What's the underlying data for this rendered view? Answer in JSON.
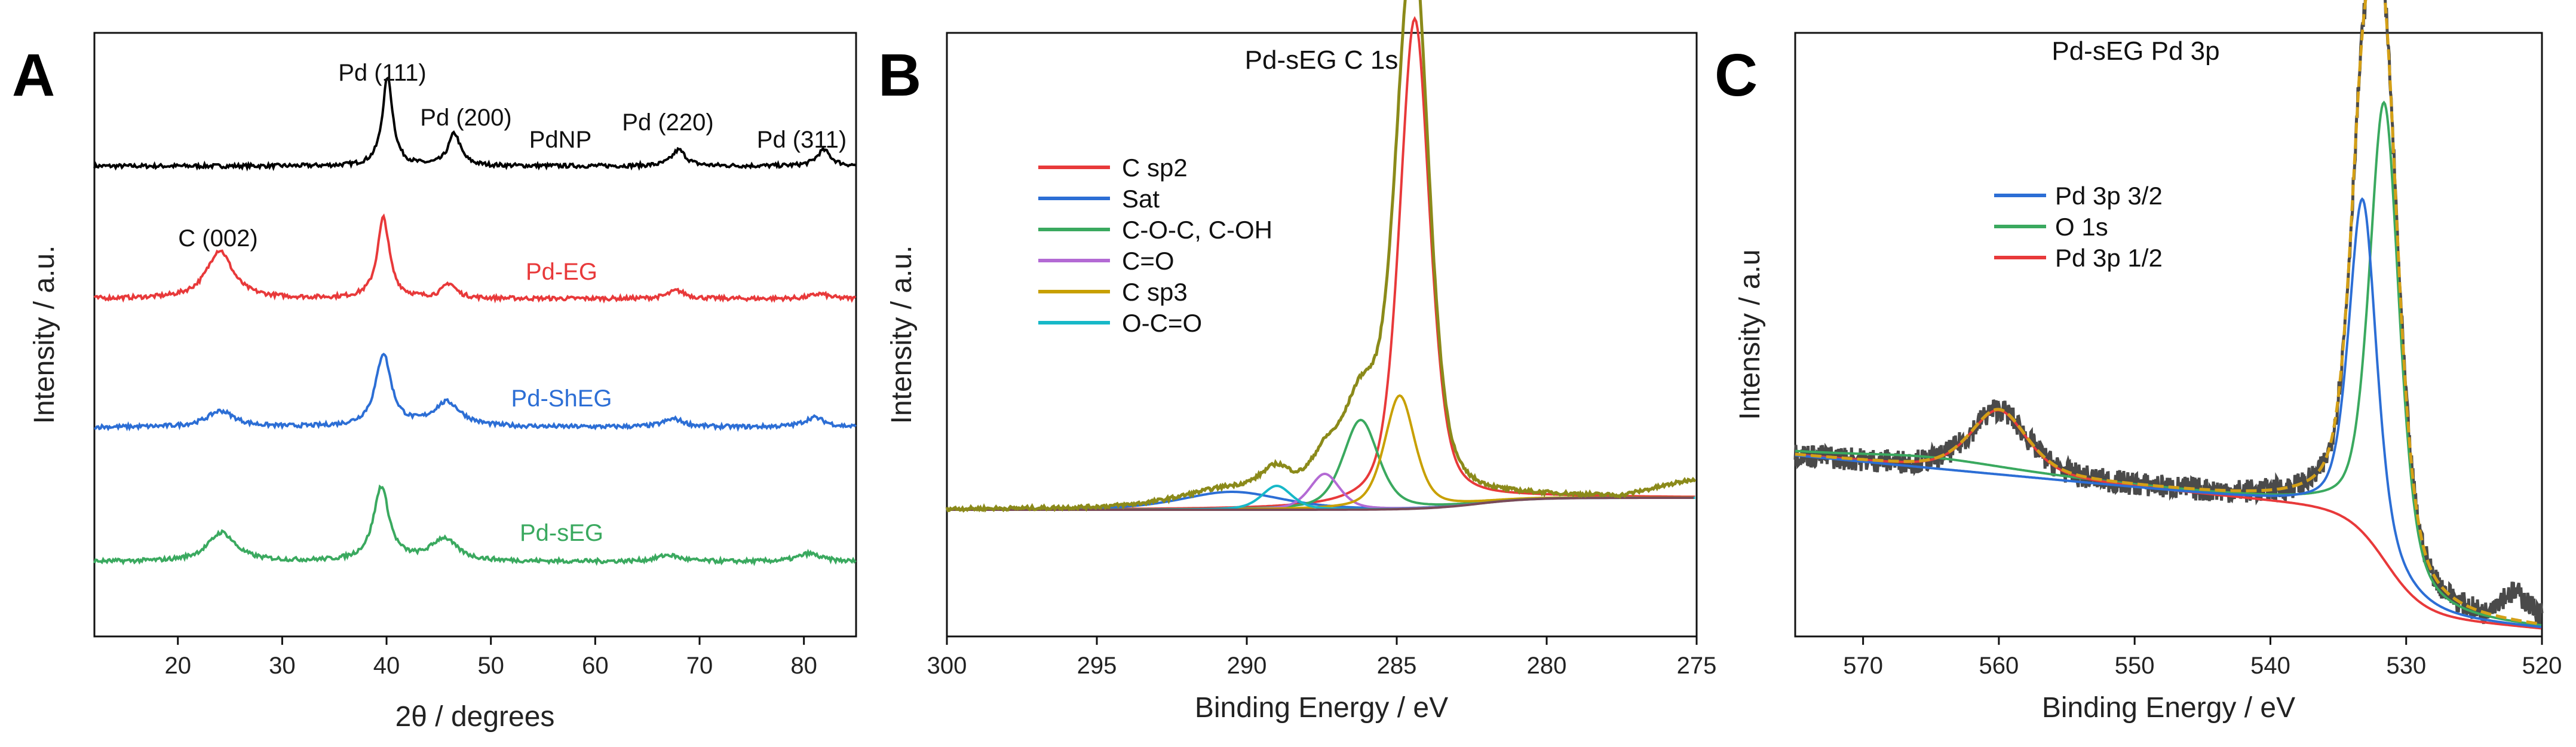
{
  "panels": [
    {
      "label": "A"
    },
    {
      "label": "B"
    },
    {
      "label": "C"
    }
  ],
  "chart_data": [
    {
      "type": "line",
      "panel": "A",
      "title": "",
      "xlabel": "2θ / degrees",
      "ylabel": "Intensity / a.u.",
      "xlim": [
        12,
        85
      ],
      "xticks": [
        20,
        30,
        40,
        50,
        60,
        70,
        80
      ],
      "series": [
        {
          "name": "PdNP",
          "color": "#000000",
          "offset": 3.0,
          "peaks": [
            {
              "x": 40.1,
              "h": 0.55,
              "w": 0.6
            },
            {
              "x": 46.5,
              "h": 0.2,
              "w": 0.7
            },
            {
              "x": 68.0,
              "h": 0.1,
              "w": 0.8
            },
            {
              "x": 81.9,
              "h": 0.1,
              "w": 0.8
            }
          ]
        },
        {
          "name": "Pd-EG",
          "color": "#e8393a",
          "offset": 1.9,
          "peaks": [
            {
              "x": 24.0,
              "h": 0.3,
              "w": 1.5
            },
            {
              "x": 39.7,
              "h": 0.5,
              "w": 0.7
            },
            {
              "x": 46.0,
              "h": 0.09,
              "w": 0.8
            },
            {
              "x": 67.8,
              "h": 0.05,
              "w": 1.0
            },
            {
              "x": 81.5,
              "h": 0.03,
              "w": 1.0
            }
          ]
        },
        {
          "name": "Pd-ShEG",
          "color": "#2c6ed5",
          "offset": 0.9,
          "peaks": [
            {
              "x": 24.1,
              "h": 0.1,
              "w": 1.6
            },
            {
              "x": 39.7,
              "h": 0.45,
              "w": 0.9
            },
            {
              "x": 45.8,
              "h": 0.15,
              "w": 1.6
            },
            {
              "x": 67.5,
              "h": 0.05,
              "w": 1.2
            },
            {
              "x": 81.0,
              "h": 0.06,
              "w": 1.2
            }
          ]
        },
        {
          "name": "Pd-sEG",
          "color": "#3aa95f",
          "offset": 0.0,
          "peaks": [
            {
              "x": 24.2,
              "h": 0.18,
              "w": 1.6
            },
            {
              "x": 39.5,
              "h": 0.46,
              "w": 0.9
            },
            {
              "x": 45.5,
              "h": 0.14,
              "w": 1.5
            },
            {
              "x": 67.0,
              "h": 0.04,
              "w": 1.3
            },
            {
              "x": 80.5,
              "h": 0.05,
              "w": 1.3
            }
          ]
        }
      ],
      "annotations": [
        {
          "text": "Pd (111)"
        },
        {
          "text": "Pd (200)"
        },
        {
          "text": "PdNP"
        },
        {
          "text": "Pd (220)"
        },
        {
          "text": "Pd (311)"
        },
        {
          "text": "C (002)"
        },
        {
          "text": "Pd-EG"
        },
        {
          "text": "Pd-ShEG"
        },
        {
          "text": "Pd-sEG"
        }
      ]
    },
    {
      "type": "line",
      "panel": "B",
      "title": "Pd-sEG C 1s",
      "xlabel": "Binding Energy / eV",
      "ylabel": "Intensity / a.u.",
      "xlim": [
        300,
        275
      ],
      "xticks": [
        300,
        295,
        290,
        285,
        280,
        275
      ],
      "series": [
        {
          "name": "C sp2",
          "color": "#e8393a",
          "center": 284.4,
          "height": 0.82,
          "width": 0.6
        },
        {
          "name": "Sat",
          "color": "#2c6ed5",
          "center": 290.5,
          "height": 0.03,
          "width": 2.0
        },
        {
          "name": "C-O-C, C-OH",
          "color": "#3aa95f",
          "center": 286.2,
          "height": 0.15,
          "width": 0.7
        },
        {
          "name": "C=O",
          "color": "#b36ad4",
          "center": 287.4,
          "height": 0.06,
          "width": 0.6
        },
        {
          "name": "C sp3",
          "color": "#c8a000",
          "center": 284.9,
          "height": 0.19,
          "width": 0.6
        },
        {
          "name": "O-C=O",
          "color": "#17b8c8",
          "center": 289.0,
          "height": 0.04,
          "width": 0.6
        }
      ],
      "envelope": {
        "name": "Envelope",
        "color": "#8b8a1a"
      },
      "background": {
        "name": "Background",
        "color": "#7a4a58"
      }
    },
    {
      "type": "line",
      "panel": "C",
      "title": "Pd-sEG Pd 3p",
      "xlabel": "Binding Energy / eV",
      "ylabel": "Intensity / a.u",
      "xlim": [
        575,
        520
      ],
      "xticks": [
        570,
        560,
        550,
        540,
        530,
        520
      ],
      "series": [
        {
          "name": "Pd 3p 3/2",
          "color": "#2c6ed5",
          "center": 533.2,
          "height": 0.62,
          "width": 1.2
        },
        {
          "name": "O 1s",
          "color": "#3aa95f",
          "center": 531.6,
          "height": 0.85,
          "width": 1.3
        },
        {
          "name": "Pd 3p 1/2",
          "color": "#e8393a",
          "center": 560.0,
          "height": 0.12,
          "width": 2.5
        }
      ],
      "envelope": {
        "name": "Envelope",
        "color": "#d4a017"
      },
      "raw": {
        "name": "Raw data",
        "color": "#4a4a4a"
      }
    }
  ]
}
